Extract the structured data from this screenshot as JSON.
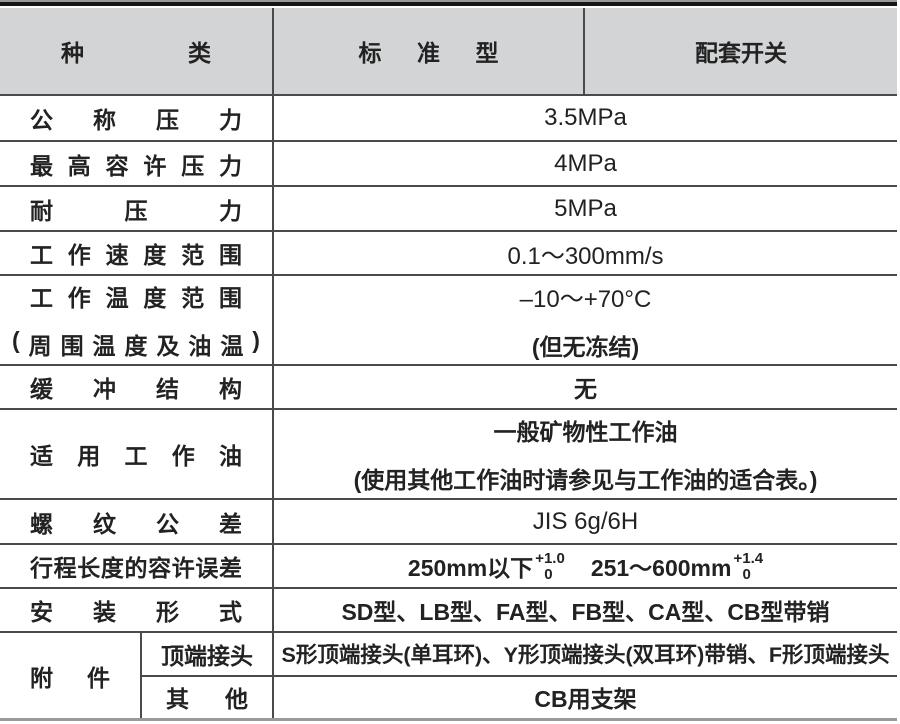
{
  "header": {
    "col_type": "种类",
    "col_standard": "标准型",
    "col_switch": "配套开关"
  },
  "rows": {
    "nominal_pressure": {
      "label": "公称压力",
      "value": "3.5MPa"
    },
    "max_pressure": {
      "label": "最高容许压力",
      "value": "4MPa"
    },
    "withstand_pressure": {
      "label": "耐压力",
      "value": "5MPa"
    },
    "speed_range": {
      "label": "工作速度范围",
      "value": "0.1～300mm/s"
    },
    "temp_range": {
      "label": "工作温度范围",
      "label2": "(周围温度及油温)",
      "value": "–10～+70°C",
      "value2": "(但无冻结)"
    },
    "cushion": {
      "label": "缓冲结构",
      "value": "无"
    },
    "working_oil": {
      "label": "适用工作油",
      "value": "一般矿物性工作油",
      "value2": "(使用其他工作油时请参见与工作油的适合表。)"
    },
    "thread_tolerance": {
      "label": "螺纹公差",
      "value": "JIS  6g/6H"
    },
    "stroke_tolerance": {
      "label": "行程长度的容许误差",
      "seg1": {
        "base": "250mm以下",
        "top": "+1.0",
        "bottom": "0"
      },
      "seg2": {
        "base": "251～600mm",
        "top": "+1.4",
        "bottom": "0"
      }
    },
    "mounting": {
      "label": "安装形式",
      "value": "SD型、LB型、FA型、FB型、CA型、CB型带销"
    }
  },
  "accessories": {
    "label": "附件",
    "top_joint": {
      "label": "顶端接头",
      "value": "S形顶端接头(单耳环)、Y形顶端接头(双耳环)带销、F形顶端接头"
    },
    "other": {
      "label": "其他",
      "value": "CB用支架"
    }
  },
  "colors": {
    "header_bg": "#d3d4d5",
    "rule_dark": "#4a4a4a",
    "rule_black": "#161616",
    "rule_gray": "#9a9a9a",
    "text": "#222222"
  }
}
